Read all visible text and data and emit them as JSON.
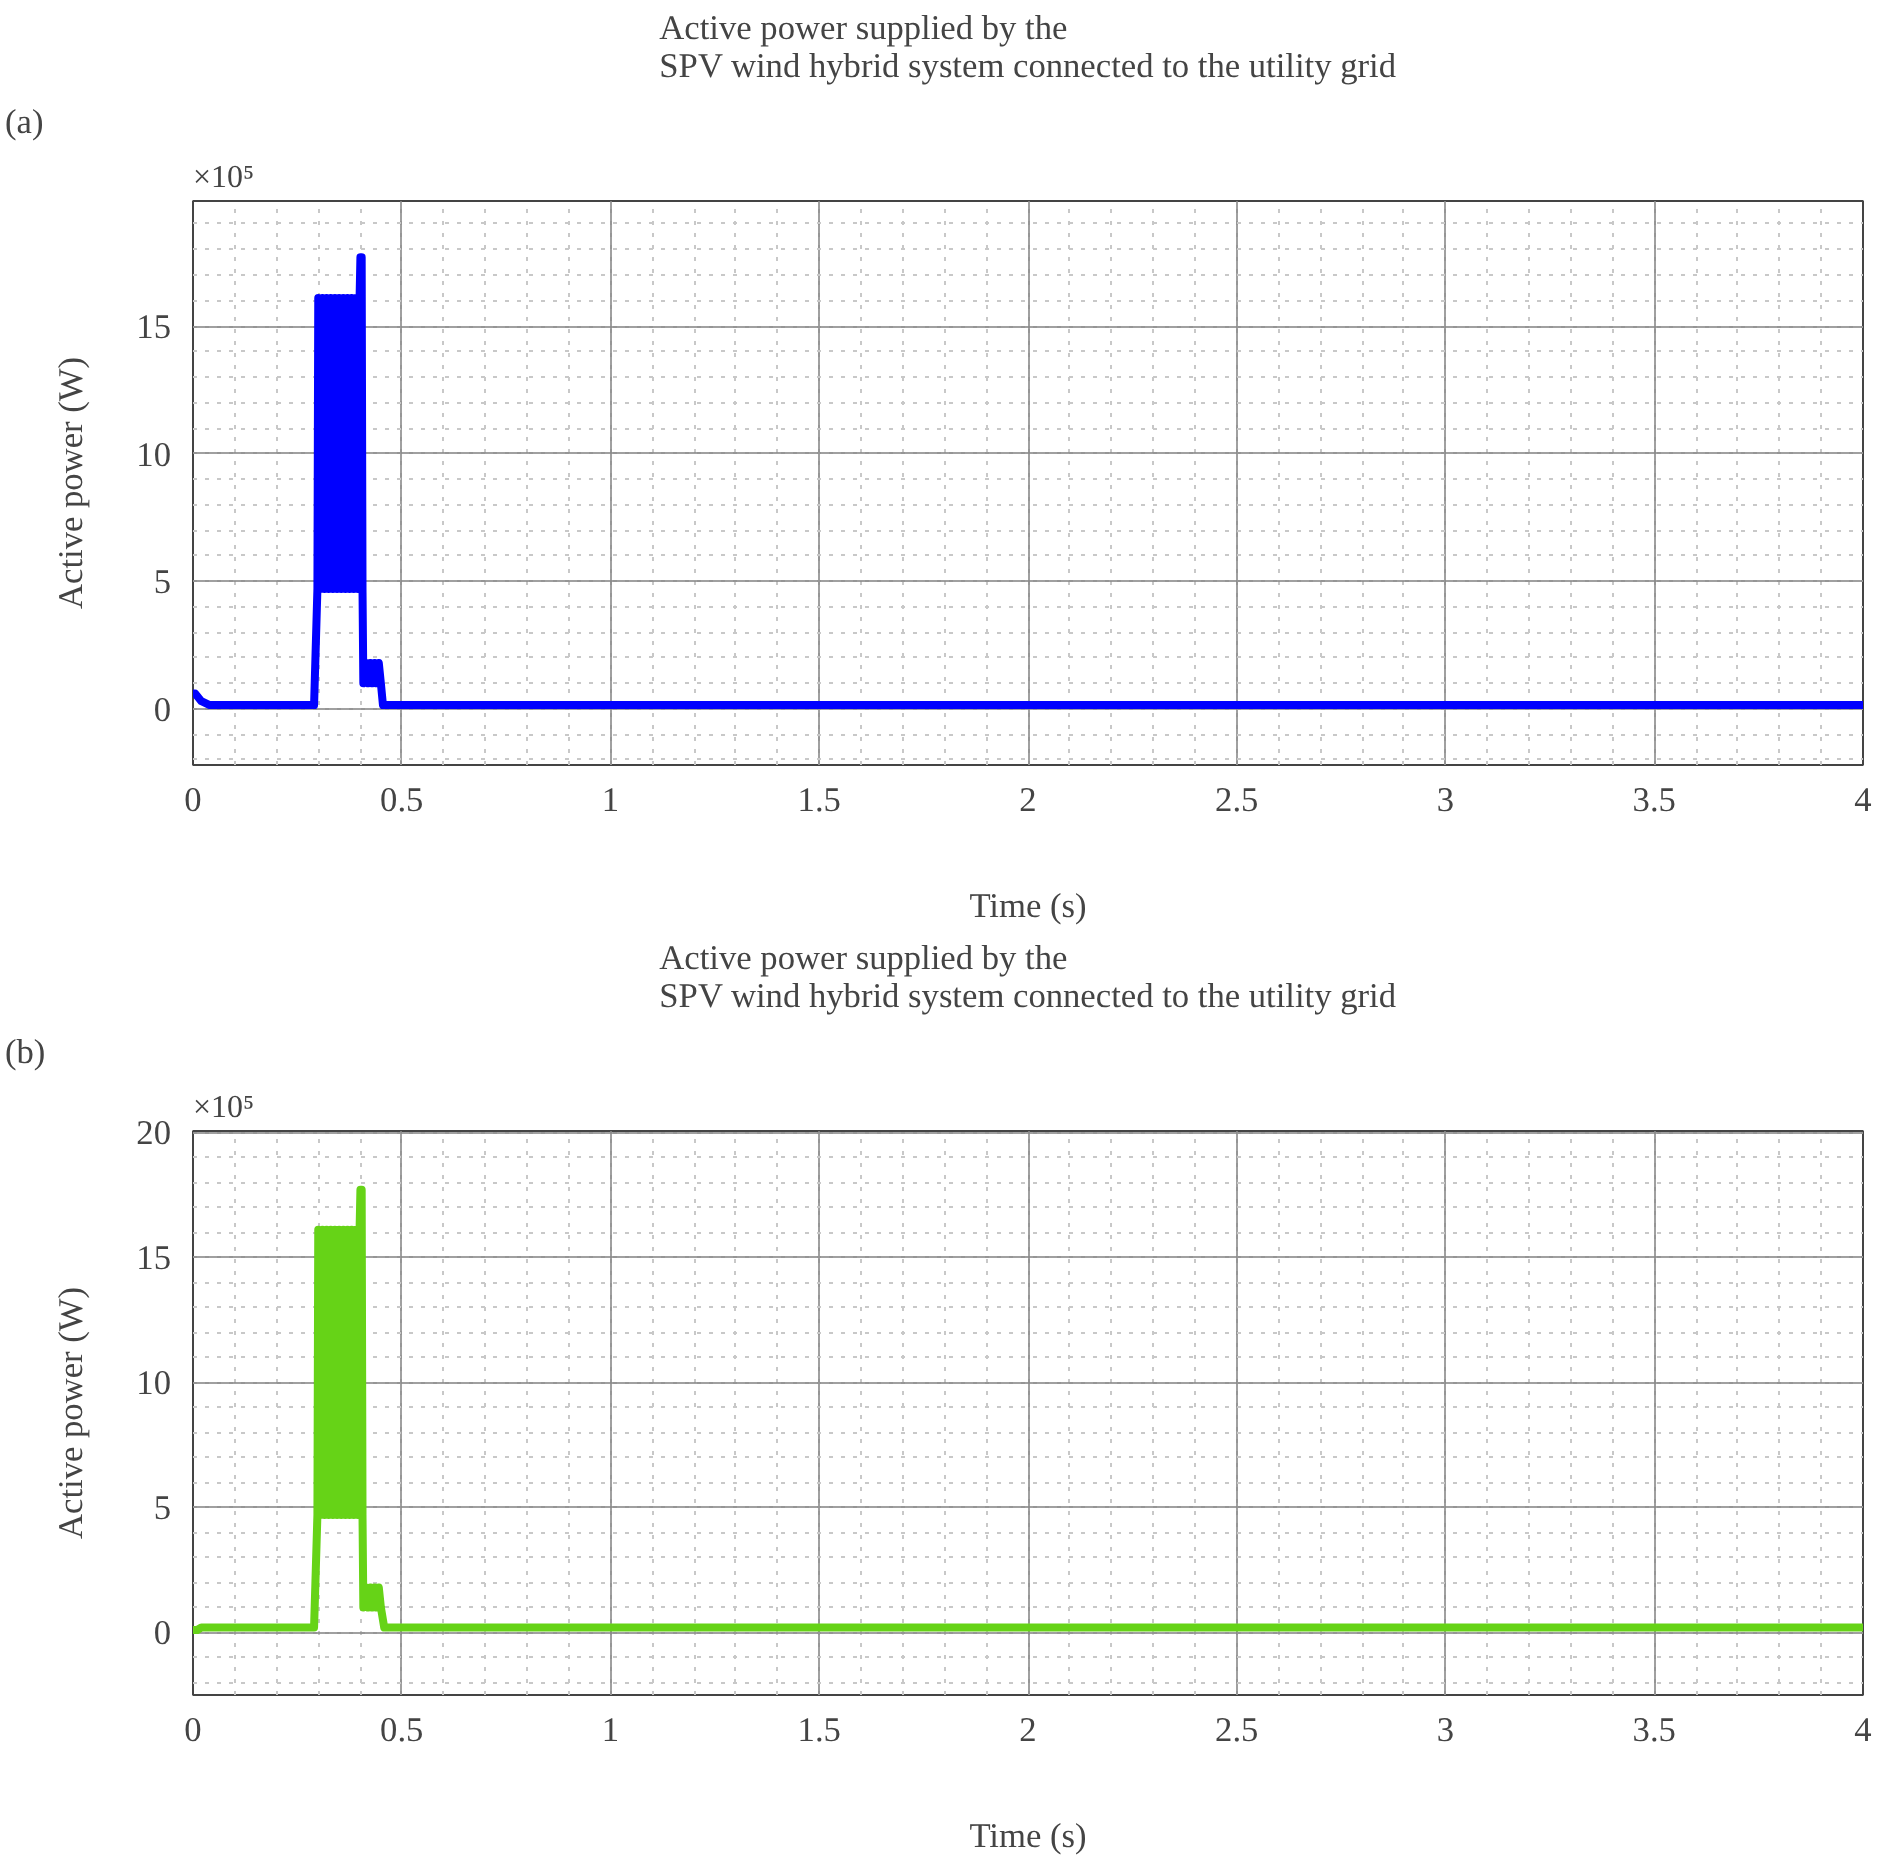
{
  "chart_data": [
    {
      "type": "line",
      "title": "Active power supplied by the\nSPV wind hybrid system connected to the utility grid",
      "xlabel": "Time (s)",
      "ylabel": "Active power (W)",
      "annotations": [
        "(a)",
        "×10⁵"
      ],
      "xlim": [
        0,
        4
      ],
      "ylim": [
        -2.2,
        19.9
      ],
      "xticks": [
        0,
        0.5,
        1,
        1.5,
        2,
        2.5,
        3,
        3.5,
        4
      ],
      "yticks": [
        0,
        5,
        10,
        15
      ],
      "grid": true,
      "line_style": "solid",
      "series": [
        {
          "color": "#0000ff",
          "x": [
            0,
            0.005,
            0.02,
            0.04,
            0.29,
            0.298,
            0.3,
            0.305,
            0.31,
            0.315,
            0.32,
            0.325,
            0.33,
            0.335,
            0.34,
            0.345,
            0.35,
            0.355,
            0.36,
            0.365,
            0.37,
            0.375,
            0.38,
            0.385,
            0.39,
            0.395,
            0.399,
            0.401,
            0.404,
            0.406,
            0.408,
            0.415,
            0.42,
            0.425,
            0.43,
            0.435,
            0.44,
            0.445,
            0.45,
            0.455,
            4
          ],
          "values": [
            0.6,
            0.6,
            0.3,
            0.15,
            0.15,
            4.7,
            16.1,
            4.7,
            16.1,
            4.7,
            16.1,
            4.7,
            16.1,
            4.7,
            16.1,
            4.7,
            16.1,
            4.7,
            16.1,
            4.7,
            16.1,
            4.7,
            16.1,
            4.7,
            16.1,
            4.7,
            16.1,
            17.7,
            17.7,
            4.7,
            1.0,
            1.8,
            1.0,
            1.8,
            1.0,
            1.8,
            1.0,
            1.8,
            1.0,
            0.15,
            0.15
          ]
        }
      ]
    },
    {
      "type": "line",
      "title": "Active power supplied by the\nSPV wind hybrid system connected to the utility grid",
      "xlabel": "Time (s)",
      "ylabel": "Active power (W)",
      "annotations": [
        "(b)",
        "×10⁵"
      ],
      "xlim": [
        0,
        4
      ],
      "ylim": [
        -2.5,
        20.05
      ],
      "xticks": [
        0,
        0.5,
        1,
        1.5,
        2,
        2.5,
        3,
        3.5,
        4
      ],
      "yticks": [
        0,
        5,
        10,
        15,
        20
      ],
      "grid": true,
      "line_style": "solid",
      "series": [
        {
          "color": "#66d317",
          "x": [
            0,
            0.01,
            0.02,
            0.29,
            0.298,
            0.3,
            0.305,
            0.31,
            0.315,
            0.32,
            0.325,
            0.33,
            0.335,
            0.34,
            0.345,
            0.35,
            0.355,
            0.36,
            0.365,
            0.37,
            0.375,
            0.38,
            0.385,
            0.39,
            0.395,
            0.399,
            0.401,
            0.404,
            0.406,
            0.408,
            0.415,
            0.42,
            0.425,
            0.43,
            0.435,
            0.44,
            0.445,
            0.45,
            0.458,
            4
          ],
          "values": [
            0.1,
            0.1,
            0.2,
            0.2,
            4.7,
            16.1,
            4.7,
            16.1,
            4.7,
            16.1,
            4.7,
            16.1,
            4.7,
            16.1,
            4.7,
            16.1,
            4.7,
            16.1,
            4.7,
            16.1,
            4.7,
            16.1,
            4.7,
            16.1,
            4.7,
            16.1,
            17.7,
            17.7,
            4.7,
            1.0,
            1.8,
            1.0,
            1.8,
            1.0,
            1.8,
            1.0,
            1.8,
            1.0,
            0.2,
            0.2
          ]
        }
      ]
    }
  ]
}
